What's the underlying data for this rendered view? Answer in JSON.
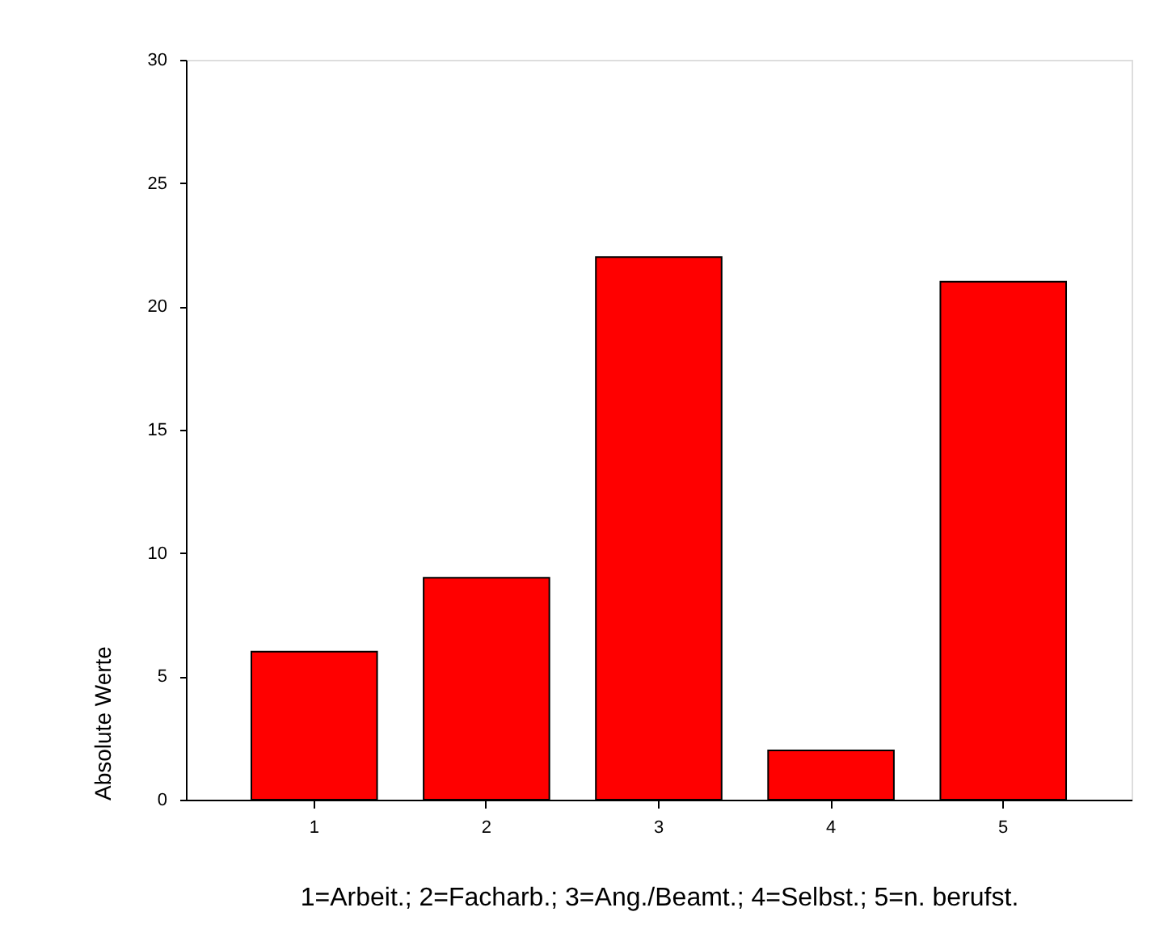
{
  "chart_data": {
    "type": "bar",
    "categories": [
      "1",
      "2",
      "3",
      "4",
      "5"
    ],
    "values": [
      6,
      9,
      22,
      2,
      21
    ],
    "color": "#ff0000",
    "ylabel": "Absolute Werte",
    "xlabel": "1=Arbeit.; 2=Facharb.; 3=Ang./Beamt.; 4=Selbst.; 5=n. berufst.",
    "ylim": [
      0,
      30
    ],
    "yticks": [
      0,
      5,
      10,
      15,
      20,
      25,
      30
    ],
    "grid": false
  }
}
